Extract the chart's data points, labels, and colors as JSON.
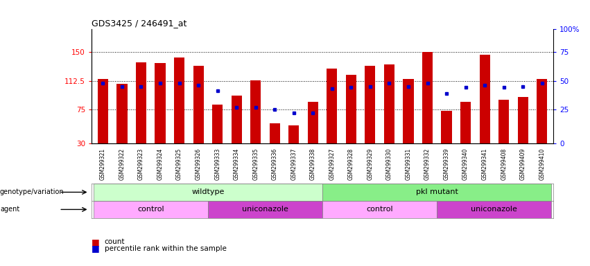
{
  "title": "GDS3425 / 246491_at",
  "samples": [
    "GSM299321",
    "GSM299322",
    "GSM299323",
    "GSM299324",
    "GSM299325",
    "GSM299326",
    "GSM299333",
    "GSM299334",
    "GSM299335",
    "GSM299336",
    "GSM299337",
    "GSM299338",
    "GSM299327",
    "GSM299328",
    "GSM299329",
    "GSM299330",
    "GSM299331",
    "GSM299332",
    "GSM299339",
    "GSM299340",
    "GSM299341",
    "GSM299408",
    "GSM299409",
    "GSM299410"
  ],
  "count_values": [
    115,
    108,
    137,
    136,
    143,
    132,
    81,
    93,
    113,
    57,
    54,
    85,
    128,
    120,
    132,
    134,
    115,
    150,
    73,
    85,
    147,
    88,
    91,
    115
  ],
  "percentile_values": [
    53,
    50,
    50,
    53,
    53,
    51,
    46,
    32,
    32,
    30,
    27,
    27,
    48,
    49,
    50,
    53,
    50,
    53,
    44,
    49,
    51,
    49,
    50,
    53
  ],
  "bar_color": "#cc0000",
  "percentile_color": "#0000cc",
  "ymin": 30,
  "ymax": 180,
  "yticks_left": [
    30,
    75,
    112.5,
    150
  ],
  "ytick_labels_left": [
    "30",
    "75",
    "112.5",
    "150"
  ],
  "right_ticks": [
    30,
    75,
    112.5,
    150,
    180
  ],
  "right_tick_labels": [
    "0",
    "25",
    "50",
    "75",
    "100%"
  ],
  "hlines": [
    75,
    112.5,
    150
  ],
  "genotype_groups": [
    {
      "label": "wildtype",
      "start": 0,
      "end": 12,
      "color": "#ccffcc"
    },
    {
      "label": "pkl mutant",
      "start": 12,
      "end": 24,
      "color": "#88ee88"
    }
  ],
  "agent_groups": [
    {
      "label": "control",
      "start": 0,
      "end": 6,
      "color": "#ffaaff"
    },
    {
      "label": "uniconazole",
      "start": 6,
      "end": 12,
      "color": "#cc44cc"
    },
    {
      "label": "control",
      "start": 12,
      "end": 18,
      "color": "#ffaaff"
    },
    {
      "label": "uniconazole",
      "start": 18,
      "end": 24,
      "color": "#cc44cc"
    }
  ],
  "bg_color": "#e8e8e8"
}
